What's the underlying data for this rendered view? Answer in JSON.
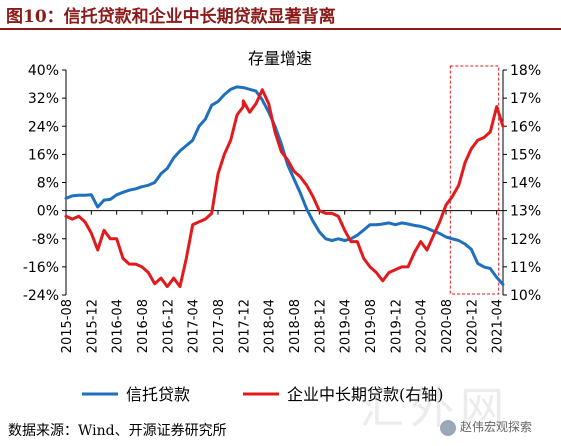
{
  "figure": {
    "title": "图10：信托贷款和企业中长期贷款显著背离",
    "source": "数据来源：Wind、开源证券研究所",
    "watermark": "汇外网",
    "wechat": "赵伟宏观探索"
  },
  "colors": {
    "title": "#8b1a1a",
    "trust": "#1f6fbf",
    "corp": "#e31a1c",
    "highlight_box": "#e31a1c"
  },
  "chart_data": {
    "type": "line",
    "title": "存量增速",
    "x_tick_labels": [
      "2015-08",
      "2015-12",
      "2016-04",
      "2016-08",
      "2016-12",
      "2017-04",
      "2017-08",
      "2017-12",
      "2018-04",
      "2018-08",
      "2018-12",
      "2019-04",
      "2019-08",
      "2019-12",
      "2020-04",
      "2020-08",
      "2020-12",
      "2021-04"
    ],
    "x_range": [
      "2015-08",
      "2021-05"
    ],
    "y_left": {
      "min": -24,
      "max": 40,
      "step": 8,
      "format": "percent"
    },
    "y_right": {
      "min": 10,
      "max": 18,
      "step": 1,
      "format": "percent"
    },
    "grid": false,
    "legend_position": "bottom",
    "highlight": {
      "from": "2020-09",
      "to": "2021-04",
      "style": "dashed-box"
    },
    "series": [
      {
        "name": "信托贷款",
        "axis": "left",
        "points": [
          [
            "2015-08",
            3.5
          ],
          [
            "2015-09",
            4.2
          ],
          [
            "2015-10",
            4.4
          ],
          [
            "2015-11",
            4.4
          ],
          [
            "2015-12",
            4.5
          ],
          [
            "2016-01",
            1.0
          ],
          [
            "2016-02",
            3.0
          ],
          [
            "2016-03",
            3.2
          ],
          [
            "2016-04",
            4.5
          ],
          [
            "2016-05",
            5.2
          ],
          [
            "2016-06",
            5.8
          ],
          [
            "2016-07",
            6.2
          ],
          [
            "2016-08",
            6.8
          ],
          [
            "2016-09",
            7.2
          ],
          [
            "2016-10",
            8.0
          ],
          [
            "2016-11",
            10.5
          ],
          [
            "2016-12",
            12.0
          ],
          [
            "2017-01",
            15.0
          ],
          [
            "2017-02",
            17.0
          ],
          [
            "2017-03",
            18.5
          ],
          [
            "2017-04",
            20.0
          ],
          [
            "2017-05",
            24.0
          ],
          [
            "2017-06",
            26.0
          ],
          [
            "2017-07",
            30.0
          ],
          [
            "2017-08",
            31.0
          ],
          [
            "2017-09",
            33.0
          ],
          [
            "2017-10",
            34.5
          ],
          [
            "2017-11",
            35.2
          ],
          [
            "2017-12",
            35.0
          ],
          [
            "2018-01",
            34.5
          ],
          [
            "2018-02",
            34.0
          ],
          [
            "2018-03",
            31.5
          ],
          [
            "2018-04",
            28.0
          ],
          [
            "2018-05",
            24.0
          ],
          [
            "2018-06",
            19.0
          ],
          [
            "2018-07",
            13.0
          ],
          [
            "2018-08",
            9.0
          ],
          [
            "2018-09",
            5.0
          ],
          [
            "2018-10",
            0.5
          ],
          [
            "2018-11",
            -3.0
          ],
          [
            "2018-12",
            -6.0
          ],
          [
            "2019-01",
            -8.0
          ],
          [
            "2019-02",
            -8.5
          ],
          [
            "2019-03",
            -8.0
          ],
          [
            "2019-04",
            -8.5
          ],
          [
            "2019-05",
            -8.0
          ],
          [
            "2019-06",
            -7.0
          ],
          [
            "2019-07",
            -5.5
          ],
          [
            "2019-08",
            -4.0
          ],
          [
            "2019-09",
            -4.0
          ],
          [
            "2019-10",
            -3.8
          ],
          [
            "2019-11",
            -3.5
          ],
          [
            "2019-12",
            -4.0
          ],
          [
            "2020-01",
            -3.5
          ],
          [
            "2020-02",
            -3.8
          ],
          [
            "2020-03",
            -4.2
          ],
          [
            "2020-04",
            -4.5
          ],
          [
            "2020-05",
            -5.0
          ],
          [
            "2020-06",
            -5.8
          ],
          [
            "2020-07",
            -6.5
          ],
          [
            "2020-08",
            -7.5
          ],
          [
            "2020-09",
            -8.0
          ],
          [
            "2020-10",
            -8.5
          ],
          [
            "2020-11",
            -9.5
          ],
          [
            "2020-12",
            -11.0
          ],
          [
            "2021-01",
            -15.0
          ],
          [
            "2021-02",
            -16.0
          ],
          [
            "2021-03",
            -16.5
          ],
          [
            "2021-04",
            -19.0
          ],
          [
            "2021-05",
            -21.0
          ]
        ]
      },
      {
        "name": "企业中长期贷款(右轴)",
        "axis": "right",
        "points": [
          [
            "2015-08",
            12.8
          ],
          [
            "2015-09",
            12.7
          ],
          [
            "2015-10",
            12.8
          ],
          [
            "2015-11",
            12.6
          ],
          [
            "2015-12",
            12.2
          ],
          [
            "2016-01",
            11.6
          ],
          [
            "2016-02",
            12.3
          ],
          [
            "2016-03",
            12.0
          ],
          [
            "2016-04",
            12.0
          ],
          [
            "2016-05",
            11.3
          ],
          [
            "2016-06",
            11.1
          ],
          [
            "2016-07",
            11.1
          ],
          [
            "2016-08",
            11.0
          ],
          [
            "2016-09",
            10.8
          ],
          [
            "2016-10",
            10.4
          ],
          [
            "2016-11",
            10.6
          ],
          [
            "2016-12",
            10.3
          ],
          [
            "2017-01",
            10.6
          ],
          [
            "2017-02",
            10.3
          ],
          [
            "2017-03",
            11.3
          ],
          [
            "2017-04",
            12.5
          ],
          [
            "2017-05",
            12.6
          ],
          [
            "2017-06",
            12.7
          ],
          [
            "2017-07",
            12.9
          ],
          [
            "2017-08",
            14.3
          ],
          [
            "2017-09",
            15.0
          ],
          [
            "2017-10",
            15.5
          ],
          [
            "2017-11",
            16.4
          ],
          [
            "2017-12",
            16.7
          ],
          [
            "2017-12",
            16.9
          ],
          [
            "2018-01",
            16.5
          ],
          [
            "2018-02",
            16.8
          ],
          [
            "2018-03",
            17.3
          ],
          [
            "2018-04",
            16.8
          ],
          [
            "2018-05",
            15.8
          ],
          [
            "2018-06",
            15.1
          ],
          [
            "2018-07",
            14.8
          ],
          [
            "2018-08",
            14.4
          ],
          [
            "2018-09",
            14.2
          ],
          [
            "2018-10",
            13.9
          ],
          [
            "2018-11",
            13.5
          ],
          [
            "2018-12",
            13.0
          ],
          [
            "2019-01",
            12.9
          ],
          [
            "2019-02",
            12.9
          ],
          [
            "2019-03",
            12.8
          ],
          [
            "2019-04",
            12.3
          ],
          [
            "2019-05",
            11.9
          ],
          [
            "2019-06",
            11.9
          ],
          [
            "2019-07",
            11.3
          ],
          [
            "2019-08",
            11.0
          ],
          [
            "2019-09",
            10.8
          ],
          [
            "2019-10",
            10.5
          ],
          [
            "2019-11",
            10.8
          ],
          [
            "2019-12",
            10.9
          ],
          [
            "2020-01",
            11.0
          ],
          [
            "2020-02",
            11.0
          ],
          [
            "2020-03",
            11.5
          ],
          [
            "2020-04",
            11.9
          ],
          [
            "2020-05",
            11.6
          ],
          [
            "2020-06",
            12.1
          ],
          [
            "2020-07",
            12.6
          ],
          [
            "2020-08",
            13.2
          ],
          [
            "2020-09",
            13.5
          ],
          [
            "2020-10",
            13.9
          ],
          [
            "2020-11",
            14.7
          ],
          [
            "2020-12",
            15.2
          ],
          [
            "2021-01",
            15.5
          ],
          [
            "2021-02",
            15.6
          ],
          [
            "2021-03",
            15.8
          ],
          [
            "2021-04",
            16.7
          ],
          [
            "2021-05",
            16.0
          ]
        ]
      }
    ]
  }
}
